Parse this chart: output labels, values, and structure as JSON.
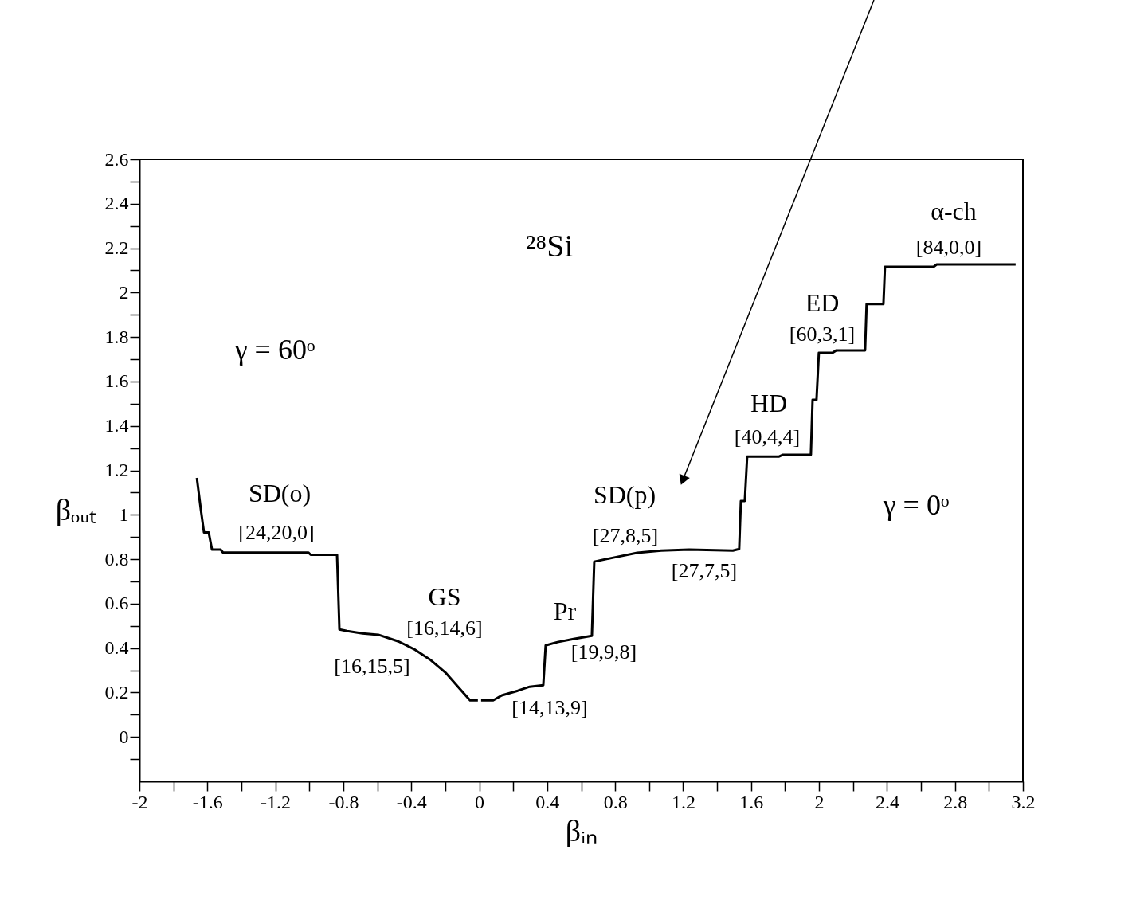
{
  "chart_data": {
    "type": "line",
    "xlabel": "βᵢₙ",
    "ylabel": "βₒᵤₜ",
    "xlim": [
      -2,
      3.2
    ],
    "ylim": [
      -0.2,
      2.6
    ],
    "xticks": [
      -2,
      {
        "value": -1.8,
        "label": null
      },
      -1.6,
      {
        "value": -1.4,
        "label": null
      },
      -1.2,
      {
        "value": -1.0,
        "label": null
      },
      -0.8,
      {
        "value": -0.6,
        "label": null
      },
      -0.4,
      {
        "value": -0.2,
        "label": null
      },
      0,
      {
        "value": 0.2,
        "label": null
      },
      0.4,
      {
        "value": 0.6,
        "label": null
      },
      0.8,
      {
        "value": 1.0,
        "label": null
      },
      1.2,
      {
        "value": 1.4,
        "label": null
      },
      1.6,
      {
        "value": 1.8,
        "label": null
      },
      2,
      {
        "value": 2.2,
        "label": null
      },
      2.4,
      {
        "value": 2.6,
        "label": null
      },
      2.8,
      {
        "value": 3.0,
        "label": null
      },
      3.2
    ],
    "yticks": [
      {
        "value": -0.1,
        "label": null
      },
      0,
      {
        "value": 0.1,
        "label": null
      },
      0.2,
      {
        "value": 0.3,
        "label": null
      },
      0.4,
      {
        "value": 0.5,
        "label": null
      },
      0.6,
      {
        "value": 0.7,
        "label": null
      },
      0.8,
      {
        "value": 0.9,
        "label": null
      },
      1,
      {
        "value": 1.1,
        "label": null
      },
      1.2,
      {
        "value": 1.3,
        "label": null
      },
      1.4,
      {
        "value": 1.5,
        "label": null
      },
      1.6,
      {
        "value": 1.7,
        "label": null
      },
      1.8,
      {
        "value": 1.9,
        "label": null
      },
      2,
      {
        "value": 2.1,
        "label": null
      },
      2.2,
      {
        "value": 2.3,
        "label": null
      },
      2.4,
      {
        "value": 2.5,
        "label": null
      },
      2.6
    ],
    "grid": false,
    "legend": false,
    "marker": "none",
    "line_style": "solid",
    "series": [
      {
        "color": "#000000",
        "x": [
          -1.662,
          -1.638,
          -1.62,
          -1.592,
          -1.573,
          -1.522,
          -1.508,
          -1.006,
          -0.992,
          -0.837,
          -0.823,
          -0.777,
          -0.687,
          -0.594,
          -0.476,
          -0.383,
          -0.289,
          -0.195,
          -0.125,
          -0.054,
          -0.008,
          0.003,
          0.011,
          0.082,
          0.133,
          0.227,
          0.297,
          0.377,
          0.391,
          0.461,
          0.555,
          0.663,
          0.677,
          0.789,
          0.93,
          1.071,
          1.235,
          1.493,
          1.53,
          1.54,
          1.563,
          1.577,
          1.765,
          1.788,
          1.952,
          1.962,
          1.985,
          1.999,
          2.079,
          2.102,
          2.271,
          2.28,
          2.379,
          2.388,
          2.674,
          2.693,
          3.157
        ],
        "values": [
          1.166,
          1.02,
          0.92,
          0.92,
          0.843,
          0.843,
          0.83,
          0.83,
          0.82,
          0.82,
          0.484,
          0.477,
          0.466,
          0.46,
          0.43,
          0.395,
          0.348,
          0.287,
          0.226,
          0.165,
          0.165,
          null,
          0.165,
          0.165,
          0.187,
          0.208,
          0.226,
          0.233,
          0.412,
          0.427,
          0.441,
          0.455,
          0.789,
          0.807,
          0.829,
          0.839,
          0.843,
          0.839,
          0.846,
          1.062,
          1.062,
          1.262,
          1.262,
          1.27,
          1.27,
          1.517,
          1.517,
          1.729,
          1.729,
          1.74,
          1.74,
          1.948,
          1.948,
          2.116,
          2.116,
          2.127,
          2.127
        ]
      }
    ],
    "annotations": [
      "²⁸Si",
      "γ = 60ᵒ",
      "γ = 0ᵒ",
      "SD(o)",
      "[24,20,0]",
      "GS",
      "[16,14,6]",
      "[16,15,5]",
      "Pr",
      "[19,9,8]",
      "[14,13,9]",
      "SD(p)",
      "[27,8,5]",
      "[27,7,5]",
      "HD",
      "[40,4,4]",
      "ED",
      "[60,3,1]",
      "α-ch",
      "[84,0,0]"
    ]
  }
}
